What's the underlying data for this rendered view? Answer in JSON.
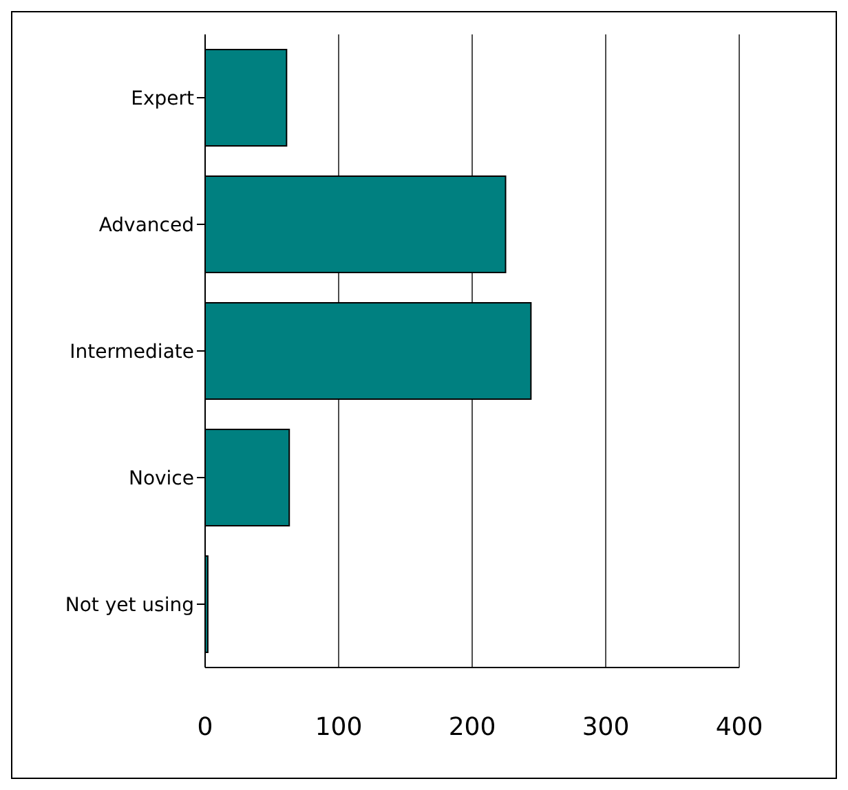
{
  "chart_data": {
    "type": "bar",
    "orientation": "horizontal",
    "categories": [
      "Expert",
      "Advanced",
      "Intermediate",
      "Novice",
      "Not yet using"
    ],
    "values": [
      61,
      225,
      244,
      63,
      2
    ],
    "color": "#008080",
    "xlim": [
      0,
      400
    ],
    "xticks": [
      0,
      100,
      200,
      300,
      400
    ],
    "grid": "x"
  }
}
